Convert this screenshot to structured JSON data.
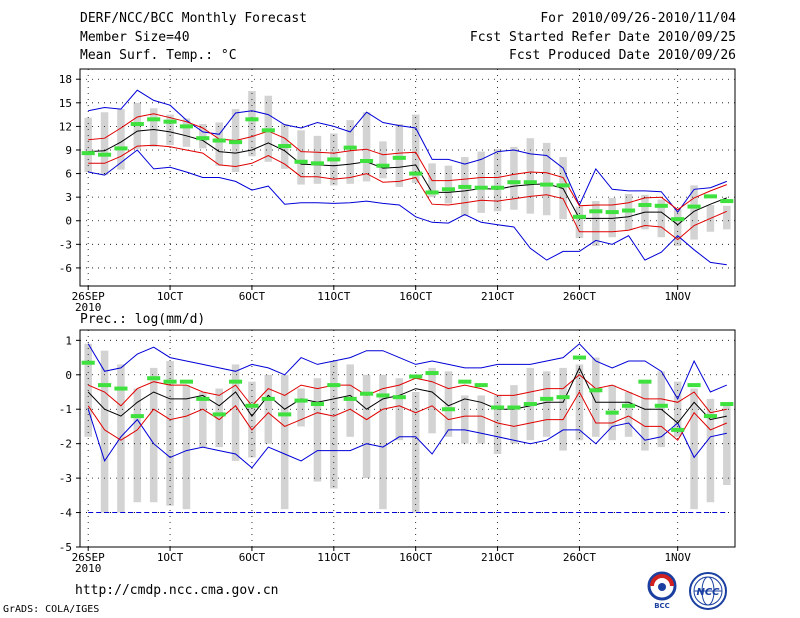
{
  "header": {
    "title": "DERF/NCC/BCC Monthly Forecast",
    "member_size": "Member Size=40",
    "variable": "Mean Surf. Temp.: °C",
    "period": "For 2010/09/26-2010/11/04",
    "refer_date": "Fcst Started Refer Date 2010/09/25",
    "produced_date": "Fcst Produced Date 2010/09/26"
  },
  "footer": {
    "url": "http://cmdp.ncc.cma.gov.cn",
    "grads": "GrADS: COLA/IGES",
    "logo_bcc": "BCC",
    "logo_ncc": "NCC"
  },
  "colors": {
    "box": "#d3d3d3",
    "median": "#3ee13e",
    "envelope": "#0000d8",
    "spread": "#e00000",
    "mean": "#000000",
    "grid": "#000000"
  },
  "chart_data": [
    {
      "type": "box",
      "title": "Mean Surf. Temp.: °C",
      "ylim": [
        -8.3,
        19.3
      ],
      "yticks": [
        18,
        15,
        12,
        9,
        6,
        3,
        0,
        -3,
        -6
      ],
      "x_tick_labels": [
        "26SEP",
        "1OCT",
        "6OCT",
        "11OCT",
        "16OCT",
        "21OCT",
        "26OCT",
        "1NOV"
      ],
      "x_tick_days": [
        1,
        6,
        11,
        16,
        21,
        26,
        31,
        37
      ],
      "x_sublabel": "2010",
      "days": 40,
      "box_low": [
        6.2,
        5.8,
        6.5,
        9.1,
        9.4,
        9.6,
        9.4,
        9.2,
        7.0,
        6.2,
        8.2,
        7.5,
        6.6,
        4.6,
        4.7,
        4.5,
        4.7,
        5.0,
        5.4,
        4.3,
        4.8,
        3.0,
        2.2,
        0.6,
        1.0,
        1.2,
        1.4,
        0.9,
        0.7,
        0.2,
        -2.2,
        -3.2,
        -2.1,
        -1.2,
        -1.1,
        -2.1,
        -3.2,
        -2.4,
        -1.4,
        -1.1
      ],
      "box_high": [
        13.1,
        13.8,
        14.2,
        15.0,
        14.3,
        13.5,
        13.0,
        12.3,
        12.5,
        14.2,
        16.5,
        15.9,
        12.3,
        11.5,
        10.8,
        11.1,
        12.8,
        13.8,
        10.1,
        12.3,
        13.5,
        7.3,
        7.0,
        8.1,
        8.8,
        9.1,
        9.4,
        10.5,
        9.9,
        8.1,
        1.8,
        2.5,
        2.9,
        3.4,
        3.3,
        2.7,
        1.5,
        4.5,
        2.0,
        1.9
      ],
      "median": [
        8.6,
        8.4,
        9.2,
        12.3,
        12.9,
        12.6,
        12.0,
        10.5,
        10.2,
        10.0,
        12.9,
        11.5,
        9.5,
        7.5,
        7.3,
        7.8,
        9.3,
        7.6,
        7.0,
        8.0,
        6.0,
        3.6,
        4.0,
        4.3,
        4.2,
        4.2,
        4.9,
        4.9,
        4.6,
        4.5,
        0.5,
        1.2,
        1.1,
        1.3,
        2.0,
        1.9,
        0.2,
        1.8,
        3.1,
        2.5
      ],
      "env_high": [
        14.0,
        14.4,
        14.2,
        16.6,
        15.3,
        14.7,
        12.8,
        11.3,
        11.0,
        13.7,
        14.0,
        13.5,
        12.2,
        11.8,
        12.5,
        12.0,
        11.3,
        13.8,
        12.5,
        12.1,
        11.8,
        7.8,
        7.8,
        7.2,
        7.8,
        8.8,
        9.0,
        8.5,
        8.3,
        6.7,
        2.0,
        6.6,
        4.0,
        3.8,
        3.8,
        3.7,
        1.1,
        4.0,
        4.2,
        5.0
      ],
      "env_low": [
        6.2,
        5.8,
        7.4,
        9.0,
        6.6,
        6.8,
        6.2,
        5.5,
        5.5,
        5.0,
        3.9,
        4.4,
        2.1,
        2.3,
        2.3,
        2.2,
        2.3,
        2.5,
        2.2,
        2.0,
        0.5,
        -0.2,
        -0.3,
        0.8,
        -0.2,
        -0.5,
        -0.8,
        -3.5,
        -5.0,
        -3.9,
        -3.9,
        -2.5,
        -3.0,
        -1.9,
        -5.0,
        -4.0,
        -1.9,
        -3.7,
        -5.3,
        -5.6
      ],
      "spread_high": [
        10.3,
        10.5,
        11.8,
        13.2,
        13.6,
        13.1,
        12.6,
        11.8,
        10.4,
        10.2,
        10.7,
        11.4,
        10.5,
        8.8,
        8.7,
        8.6,
        8.9,
        9.1,
        8.4,
        8.6,
        8.7,
        5.1,
        5.1,
        5.3,
        5.5,
        5.5,
        5.9,
        6.2,
        6.1,
        5.5,
        1.9,
        2.0,
        2.0,
        2.3,
        2.9,
        3.0,
        1.4,
        2.9,
        3.8,
        4.6
      ],
      "spread_low": [
        7.3,
        7.3,
        8.2,
        9.5,
        9.6,
        9.4,
        9.0,
        8.6,
        7.1,
        6.9,
        7.3,
        8.3,
        7.2,
        5.6,
        5.6,
        5.3,
        5.5,
        6.0,
        4.9,
        5.0,
        5.5,
        2.1,
        2.0,
        2.3,
        2.6,
        2.5,
        2.8,
        3.1,
        3.3,
        2.8,
        -1.4,
        -1.4,
        -1.4,
        -1.2,
        -0.6,
        -0.8,
        -2.4,
        -0.6,
        0.3,
        1.2
      ],
      "mean": [
        8.8,
        8.9,
        10.0,
        11.4,
        11.6,
        11.3,
        10.8,
        10.2,
        8.8,
        8.6,
        9.0,
        9.9,
        8.9,
        7.2,
        7.1,
        7.0,
        7.2,
        7.5,
        6.7,
        6.8,
        7.1,
        3.6,
        3.6,
        3.8,
        4.1,
        4.0,
        4.4,
        4.6,
        4.7,
        4.1,
        0.3,
        0.3,
        0.3,
        0.5,
        1.1,
        1.1,
        -0.5,
        1.2,
        2.1,
        2.9
      ]
    },
    {
      "type": "box",
      "title": "Prec.: log(mm/d)",
      "ylim": [
        -5,
        1.3
      ],
      "yticks": [
        1,
        0,
        -1,
        -2,
        -3,
        -4,
        -5
      ],
      "x_tick_labels": [
        "26SEP",
        "1OCT",
        "6OCT",
        "11OCT",
        "16OCT",
        "21OCT",
        "26OCT",
        "1NOV"
      ],
      "x_tick_days": [
        1,
        6,
        11,
        16,
        21,
        26,
        31,
        37
      ],
      "x_sublabel": "2010",
      "days": 40,
      "reference_line": -4,
      "box_low": [
        -1.8,
        -4.0,
        -4.0,
        -3.7,
        -3.7,
        -3.8,
        -3.9,
        -2.1,
        -2.1,
        -2.5,
        -2.4,
        -2.0,
        -3.9,
        -1.5,
        -3.1,
        -3.3,
        -1.8,
        -3.0,
        -3.9,
        -1.9,
        -4.0,
        -1.7,
        -1.8,
        -2.0,
        -2.0,
        -2.3,
        -2.0,
        -1.9,
        -1.8,
        -2.2,
        -1.9,
        -1.8,
        -1.9,
        -1.8,
        -2.2,
        -2.1,
        -1.8,
        -3.9,
        -3.7,
        -3.2
      ],
      "box_high": [
        0.9,
        0.7,
        0.3,
        -0.4,
        0.2,
        0.4,
        -0.3,
        -0.5,
        -0.4,
        0.3,
        -0.2,
        0.0,
        0.0,
        -0.4,
        -0.1,
        0.4,
        0.3,
        0.0,
        0.0,
        -0.1,
        -0.5,
        0.2,
        0.1,
        -0.6,
        -0.6,
        -0.6,
        -0.3,
        0.2,
        0.1,
        0.2,
        0.3,
        0.5,
        -0.3,
        -0.5,
        -0.2,
        0.1,
        -0.2,
        -0.4,
        -0.7,
        -0.8
      ],
      "median": [
        0.35,
        -0.3,
        -0.4,
        -1.2,
        -0.1,
        -0.2,
        -0.2,
        -0.7,
        -1.15,
        -0.2,
        -0.9,
        -0.7,
        -1.15,
        -0.75,
        -0.85,
        -0.3,
        -0.7,
        -0.55,
        -0.6,
        -0.65,
        -0.05,
        0.05,
        -1.0,
        -0.2,
        -0.3,
        -0.95,
        -0.95,
        -0.85,
        -0.7,
        -0.65,
        0.5,
        -0.45,
        -1.1,
        -0.9,
        -0.2,
        -0.9,
        -1.6,
        -0.3,
        -1.2,
        -0.85
      ],
      "env_high": [
        0.9,
        0.1,
        0.2,
        0.6,
        0.8,
        0.5,
        0.4,
        0.3,
        0.2,
        0.1,
        0.3,
        0.2,
        0.0,
        0.5,
        0.3,
        0.4,
        0.5,
        0.7,
        0.7,
        0.5,
        0.3,
        0.4,
        0.3,
        0.2,
        0.2,
        0.3,
        0.3,
        0.3,
        0.4,
        0.5,
        0.9,
        0.4,
        0.2,
        0.4,
        0.4,
        0.1,
        -0.7,
        0.4,
        -0.5,
        -0.3
      ],
      "env_low": [
        -1.0,
        -2.5,
        -1.8,
        -1.3,
        -2.0,
        -2.4,
        -2.2,
        -2.1,
        -2.2,
        -2.3,
        -2.7,
        -2.1,
        -2.3,
        -2.5,
        -2.2,
        -2.2,
        -2.2,
        -2.0,
        -2.1,
        -1.8,
        -1.8,
        -2.3,
        -1.6,
        -1.6,
        -1.7,
        -1.8,
        -1.9,
        -2.0,
        -1.9,
        -1.6,
        -1.6,
        -2.0,
        -1.5,
        -1.4,
        -1.9,
        -1.8,
        -1.4,
        -2.4,
        -1.8,
        -1.7
      ],
      "spread_high": [
        -0.3,
        -0.5,
        -0.9,
        -0.4,
        -0.2,
        -0.3,
        -0.3,
        -0.5,
        -0.6,
        -0.3,
        -0.9,
        -0.4,
        -0.6,
        -0.3,
        -0.4,
        -0.3,
        -0.3,
        -0.6,
        -0.4,
        -0.3,
        -0.1,
        -0.2,
        -0.4,
        -0.3,
        -0.4,
        -0.6,
        -0.6,
        -0.5,
        -0.4,
        -0.4,
        0.0,
        -0.4,
        -0.3,
        -0.5,
        -0.7,
        -0.7,
        -0.8,
        -0.5,
        -1.1,
        -1.0
      ],
      "spread_low": [
        -0.9,
        -1.6,
        -1.9,
        -1.6,
        -1.0,
        -1.3,
        -1.2,
        -1.0,
        -1.3,
        -0.9,
        -1.6,
        -1.1,
        -1.5,
        -1.3,
        -1.1,
        -1.2,
        -1.0,
        -1.3,
        -1.0,
        -0.9,
        -1.1,
        -0.9,
        -1.3,
        -1.2,
        -1.2,
        -1.4,
        -1.5,
        -1.4,
        -1.3,
        -1.3,
        -0.5,
        -1.4,
        -1.4,
        -1.2,
        -1.5,
        -1.5,
        -1.9,
        -1.1,
        -1.6,
        -1.4
      ],
      "mean": [
        -0.5,
        -1.0,
        -1.2,
        -0.8,
        -0.5,
        -0.7,
        -0.7,
        -0.6,
        -0.9,
        -0.5,
        -1.2,
        -0.6,
        -1.0,
        -0.7,
        -0.8,
        -0.7,
        -0.6,
        -1.0,
        -0.7,
        -0.6,
        -0.4,
        -0.5,
        -0.9,
        -0.7,
        -0.8,
        -1.0,
        -1.0,
        -0.9,
        -0.8,
        -0.8,
        0.2,
        -0.8,
        -0.8,
        -0.8,
        -1.0,
        -1.0,
        -1.4,
        -0.8,
        -1.3,
        -1.2
      ]
    }
  ]
}
